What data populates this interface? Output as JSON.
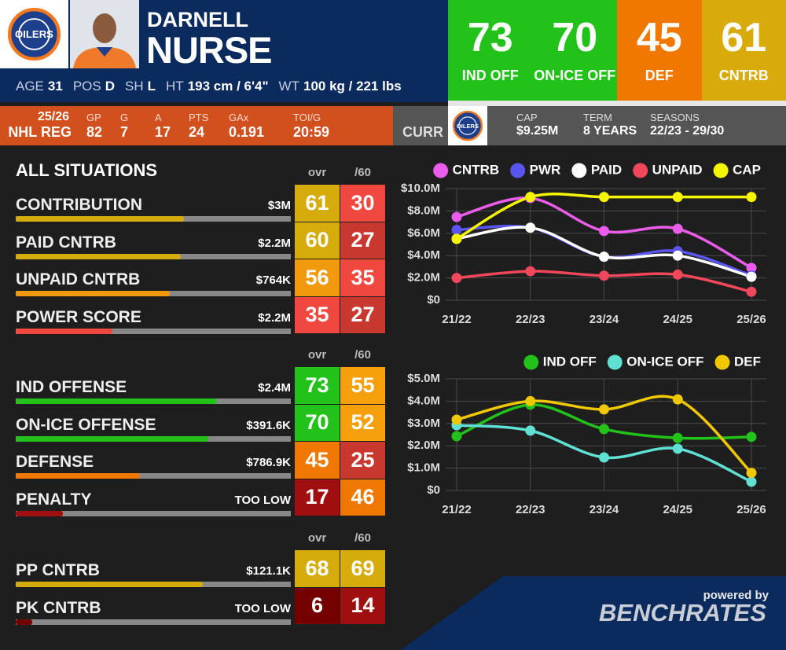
{
  "header": {
    "team": "OILERS",
    "first_name": "DARNELL",
    "last_name": "NURSE",
    "bio": [
      {
        "label": "AGE",
        "value": "31"
      },
      {
        "label": "POS",
        "value": "D"
      },
      {
        "label": "SH",
        "value": "L"
      },
      {
        "label": "HT",
        "value": "193 cm / 6'4\""
      },
      {
        "label": "WT",
        "value": "100 kg / 221 lbs"
      }
    ]
  },
  "ratings": [
    {
      "value": 73,
      "label": "IND OFF",
      "color": "#22c21a"
    },
    {
      "value": 70,
      "label": "ON-ICE OFF",
      "color": "#22c21a"
    },
    {
      "value": 45,
      "label": "DEF",
      "color": "#f07800"
    },
    {
      "value": 61,
      "label": "CNTRB",
      "color": "#d9ab0a"
    }
  ],
  "season_stats": {
    "season": "25/26",
    "league": "NHL REG",
    "stats": [
      {
        "label": "GP",
        "value": "82"
      },
      {
        "label": "G",
        "value": "7"
      },
      {
        "label": "A",
        "value": "17"
      },
      {
        "label": "PTS",
        "value": "24"
      },
      {
        "label": "GAx",
        "value": "0.191"
      },
      {
        "label": "TOI/G",
        "value": "20:59"
      }
    ]
  },
  "contract": {
    "label": "CURR",
    "items": [
      {
        "label": "CAP",
        "value": "$9.25M"
      },
      {
        "label": "TERM",
        "value": "8 YEARS"
      },
      {
        "label": "SEASONS",
        "value": "22/23 - 29/30"
      }
    ]
  },
  "situations": {
    "title": "ALL SITUATIONS",
    "groups": [
      {
        "columns": [
          "ovr",
          "/60"
        ],
        "rows": [
          {
            "name": "CONTRIBUTION",
            "amount": "$3M",
            "ovr": {
              "value": 61,
              "color": "#d6ab0c"
            },
            "per60": {
              "value": 30,
              "color": "#f0473f"
            }
          },
          {
            "name": "PAID CNTRB",
            "amount": "$2.2M",
            "ovr": {
              "value": 60,
              "color": "#d6ab0c"
            },
            "per60": {
              "value": 27,
              "color": "#c9382f"
            }
          },
          {
            "name": "UNPAID CNTRB",
            "amount": "$764K",
            "ovr": {
              "value": 56,
              "color": "#f29a0e"
            },
            "per60": {
              "value": 35,
              "color": "#f0473f"
            }
          },
          {
            "name": "POWER SCORE",
            "amount": "$2.2M",
            "ovr": {
              "value": 35,
              "color": "#f0473f"
            },
            "per60": {
              "value": 27,
              "color": "#c9382f"
            }
          }
        ]
      },
      {
        "columns": [
          "ovr",
          "/60"
        ],
        "rows": [
          {
            "name": "IND OFFENSE",
            "amount": "$2.4M",
            "ovr": {
              "value": 73,
              "color": "#22c21a"
            },
            "per60": {
              "value": 55,
              "color": "#f59f0a"
            }
          },
          {
            "name": "ON-ICE OFFENSE",
            "amount": "$391.6K",
            "ovr": {
              "value": 70,
              "color": "#22c21a"
            },
            "per60": {
              "value": 52,
              "color": "#f59f0a"
            }
          },
          {
            "name": "DEFENSE",
            "amount": "$786.9K",
            "ovr": {
              "value": 45,
              "color": "#f07800"
            },
            "per60": {
              "value": 25,
              "color": "#c9382f"
            }
          },
          {
            "name": "PENALTY",
            "amount": "TOO LOW",
            "ovr": {
              "value": 17,
              "color": "#a00f0f"
            },
            "per60": {
              "value": 46,
              "color": "#f07800"
            }
          }
        ]
      },
      {
        "columns": [
          "ovr",
          "/60"
        ],
        "rows": [
          {
            "name": "PP CNTRB",
            "amount": "$121.1K",
            "ovr": {
              "value": 68,
              "color": "#d6ab0c"
            },
            "per60": {
              "value": 69,
              "color": "#d6ab0c"
            }
          },
          {
            "name": "PK CNTRB",
            "amount": "TOO LOW",
            "ovr": {
              "value": 6,
              "color": "#740000"
            },
            "per60": {
              "value": 14,
              "color": "#a00f0f"
            }
          }
        ]
      }
    ]
  },
  "chart_data": [
    {
      "type": "line",
      "categories": [
        "21/22",
        "22/23",
        "23/24",
        "24/25",
        "25/26"
      ],
      "ylim": [
        0,
        10000000
      ],
      "yticks": [
        {
          "value": 0,
          "label": "$0"
        },
        {
          "value": 2000000,
          "label": "$2.0M"
        },
        {
          "value": 4000000,
          "label": "$4.0M"
        },
        {
          "value": 6000000,
          "label": "$6.0M"
        },
        {
          "value": 8000000,
          "label": "$8.0M"
        },
        {
          "value": 10000000,
          "label": "$10.0M"
        }
      ],
      "grid": true,
      "legend": "top-right",
      "series": [
        {
          "name": "CNTRB",
          "color": "#ea5cea",
          "values": [
            7460000,
            9150000,
            6200000,
            6400000,
            2900000
          ]
        },
        {
          "name": "PWR",
          "color": "#5a55f0",
          "values": [
            6300000,
            6500000,
            3900000,
            4400000,
            2200000
          ]
        },
        {
          "name": "PAID",
          "color": "#ffffff",
          "values": [
            5500000,
            6500000,
            3900000,
            4000000,
            2100000
          ]
        },
        {
          "name": "UNPAID",
          "color": "#f0475a",
          "values": [
            2000000,
            2600000,
            2200000,
            2300000,
            760000
          ]
        },
        {
          "name": "CAP",
          "color": "#f5f500",
          "values": [
            5500000,
            9250000,
            9250000,
            9250000,
            9250000
          ]
        }
      ]
    },
    {
      "type": "line",
      "categories": [
        "21/22",
        "22/23",
        "23/24",
        "24/25",
        "25/26"
      ],
      "ylim": [
        0,
        5000000
      ],
      "yticks": [
        {
          "value": 0,
          "label": "$0"
        },
        {
          "value": 1000000,
          "label": "$1.0M"
        },
        {
          "value": 2000000,
          "label": "$2.0M"
        },
        {
          "value": 3000000,
          "label": "$3.0M"
        },
        {
          "value": 4000000,
          "label": "$4.0M"
        },
        {
          "value": 5000000,
          "label": "$5.0M"
        }
      ],
      "grid": true,
      "legend": "top-right",
      "series": [
        {
          "name": "IND OFF",
          "color": "#22c21a",
          "values": [
            2430000,
            3840000,
            2750000,
            2350000,
            2400000
          ]
        },
        {
          "name": "ON-ICE OFF",
          "color": "#5fe0d2",
          "values": [
            2920000,
            2680000,
            1480000,
            1870000,
            390000
          ]
        },
        {
          "name": "DEF",
          "color": "#f0c800",
          "values": [
            3170000,
            4000000,
            3630000,
            4080000,
            790000
          ]
        }
      ]
    }
  ],
  "footer": {
    "tagline": "powered by",
    "brand": "BENCHRATES"
  }
}
